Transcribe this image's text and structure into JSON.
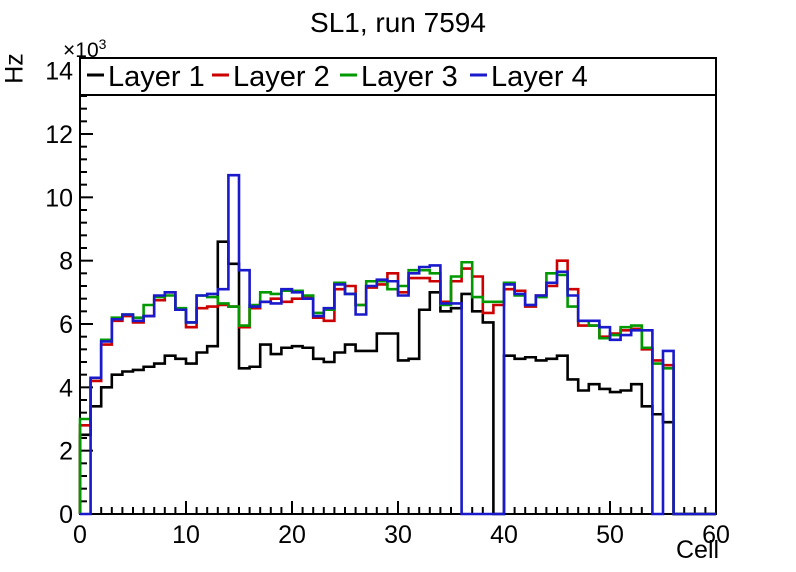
{
  "title": "SL1, run 7594",
  "axes": {
    "y_title": "Hz",
    "y_multiplier_base": "×10",
    "y_multiplier_exp": "3",
    "x_title": "Cell",
    "y_ticks": [
      0,
      2,
      4,
      6,
      8,
      10,
      12,
      14
    ],
    "x_ticks": [
      0,
      10,
      20,
      30,
      40,
      50,
      60
    ]
  },
  "legend": {
    "items": [
      {
        "label": "Layer 1",
        "color": "#000000"
      },
      {
        "label": "Layer 2",
        "color": "#cc0000"
      },
      {
        "label": "Layer 3",
        "color": "#009900"
      },
      {
        "label": "Layer 4",
        "color": "#1a1acc"
      }
    ]
  },
  "chart_data": {
    "type": "line",
    "style": "step-histogram",
    "title": "SL1, run 7594",
    "xlabel": "Cell",
    "ylabel": "Hz",
    "values_scale": "×10³ Hz",
    "xlim": [
      0,
      60
    ],
    "ylim": [
      0,
      14.4
    ],
    "bin_width": 1,
    "bin_start": 0,
    "n_bins": 57,
    "grid": false,
    "legend_position": "top-inside-full-width",
    "series": [
      {
        "name": "Layer 1",
        "color": "#000000",
        "values": [
          2.5,
          3.4,
          4.0,
          4.4,
          4.5,
          4.55,
          4.65,
          4.75,
          5.0,
          4.9,
          4.75,
          5.1,
          5.3,
          8.6,
          7.9,
          4.6,
          4.65,
          5.35,
          5.05,
          5.25,
          5.3,
          5.25,
          4.9,
          4.8,
          5.1,
          5.35,
          5.15,
          5.15,
          5.7,
          5.7,
          4.85,
          4.9,
          6.45,
          7.0,
          6.4,
          6.5,
          6.95,
          6.4,
          6.05,
          0,
          5.0,
          4.9,
          4.95,
          4.85,
          4.9,
          5.0,
          4.25,
          3.9,
          4.1,
          3.95,
          3.85,
          3.9,
          4.1,
          3.4,
          3.15,
          2.9,
          0
        ]
      },
      {
        "name": "Layer 2",
        "color": "#cc0000",
        "values": [
          2.8,
          4.2,
          5.35,
          6.1,
          6.25,
          6.05,
          6.25,
          6.75,
          7.0,
          6.45,
          5.9,
          6.5,
          6.55,
          6.6,
          6.55,
          5.9,
          6.5,
          6.7,
          6.8,
          6.7,
          6.8,
          6.85,
          6.2,
          6.1,
          7.1,
          7.2,
          6.6,
          7.15,
          7.25,
          7.6,
          7.0,
          7.45,
          7.45,
          7.35,
          6.7,
          7.35,
          7.75,
          7.5,
          6.35,
          6.6,
          7.1,
          7.05,
          6.55,
          6.9,
          7.2,
          8.0,
          7.1,
          5.95,
          5.95,
          5.6,
          5.7,
          5.8,
          5.85,
          5.2,
          4.85,
          4.7,
          0
        ]
      },
      {
        "name": "Layer 3",
        "color": "#009900",
        "values": [
          3.0,
          4.3,
          5.5,
          6.2,
          6.3,
          6.2,
          6.6,
          6.85,
          6.9,
          6.5,
          6.05,
          6.9,
          6.85,
          6.65,
          6.55,
          5.95,
          6.6,
          7.0,
          6.95,
          7.05,
          7.05,
          6.9,
          6.35,
          6.45,
          7.3,
          6.95,
          6.6,
          7.35,
          7.35,
          7.1,
          7.2,
          7.7,
          7.7,
          7.6,
          6.6,
          7.5,
          7.95,
          6.85,
          6.7,
          6.7,
          7.3,
          6.9,
          6.6,
          6.85,
          7.6,
          7.55,
          6.55,
          6.1,
          5.95,
          5.55,
          5.65,
          5.9,
          5.95,
          5.25,
          4.75,
          4.6,
          0
        ]
      },
      {
        "name": "Layer 4",
        "color": "#1a1acc",
        "values": [
          0,
          4.3,
          5.45,
          6.15,
          6.3,
          6.1,
          6.25,
          6.9,
          7.0,
          6.45,
          6.05,
          6.9,
          6.95,
          7.1,
          10.7,
          7.7,
          6.55,
          6.7,
          6.65,
          7.1,
          7.0,
          6.8,
          6.25,
          6.5,
          7.25,
          6.95,
          6.3,
          7.2,
          7.4,
          7.35,
          6.9,
          7.6,
          7.8,
          7.85,
          6.65,
          6.65,
          0,
          0,
          0,
          0,
          7.25,
          6.95,
          6.6,
          6.9,
          7.3,
          7.65,
          6.9,
          6.1,
          6.1,
          5.9,
          5.5,
          5.65,
          5.8,
          5.8,
          0,
          5.15,
          0
        ]
      }
    ]
  }
}
